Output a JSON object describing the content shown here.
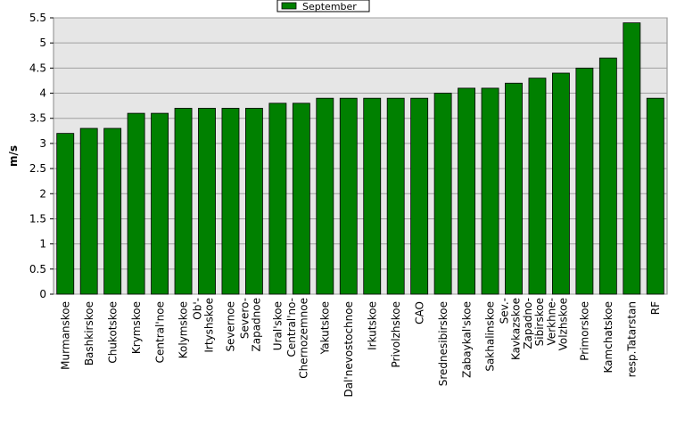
{
  "chart_data": {
    "type": "bar",
    "y_label": "m/s",
    "series": [
      {
        "name": "September",
        "color": "#008000",
        "values": [
          3.2,
          3.3,
          3.3,
          3.6,
          3.6,
          3.7,
          3.7,
          3.7,
          3.7,
          3.8,
          3.8,
          3.9,
          3.9,
          3.9,
          3.9,
          3.9,
          4.0,
          4.1,
          4.1,
          4.2,
          4.3,
          4.4,
          4.5,
          4.7,
          5.4,
          3.9
        ]
      }
    ],
    "categories": [
      "Murmanskoe",
      "Bashkirskoe",
      "Chukotskoe",
      "Krymskoe",
      "Central'noe",
      "Kolymskoe",
      "Ob'-\nIrtyshskoe",
      "Severnoe",
      "Severo-\nZapadnoe",
      "Ural'skoe",
      "Central'no-\nChernozemnoe",
      "Yakutskoe",
      "Dal'nevostochnoe",
      "Irkutskoe",
      "Privolzhskoe",
      "CAO",
      "Srednesibirskoe",
      "Zabaykal'skoe",
      "Sakhalinskoe",
      "Sev.-\nKavkazskoe",
      "Zapadno-\nSibirskoe",
      "Verkhne-\nVolzhskoe",
      "Primorskoe",
      "Kamchatskoe",
      "resp.Tatarstan",
      "RF"
    ],
    "ylim": [
      0,
      5.5
    ],
    "yticks": [
      0,
      0.5,
      1,
      1.5,
      2,
      2.5,
      3,
      3.5,
      4,
      4.5,
      5,
      5.5
    ],
    "grid": true,
    "legend": "top"
  }
}
